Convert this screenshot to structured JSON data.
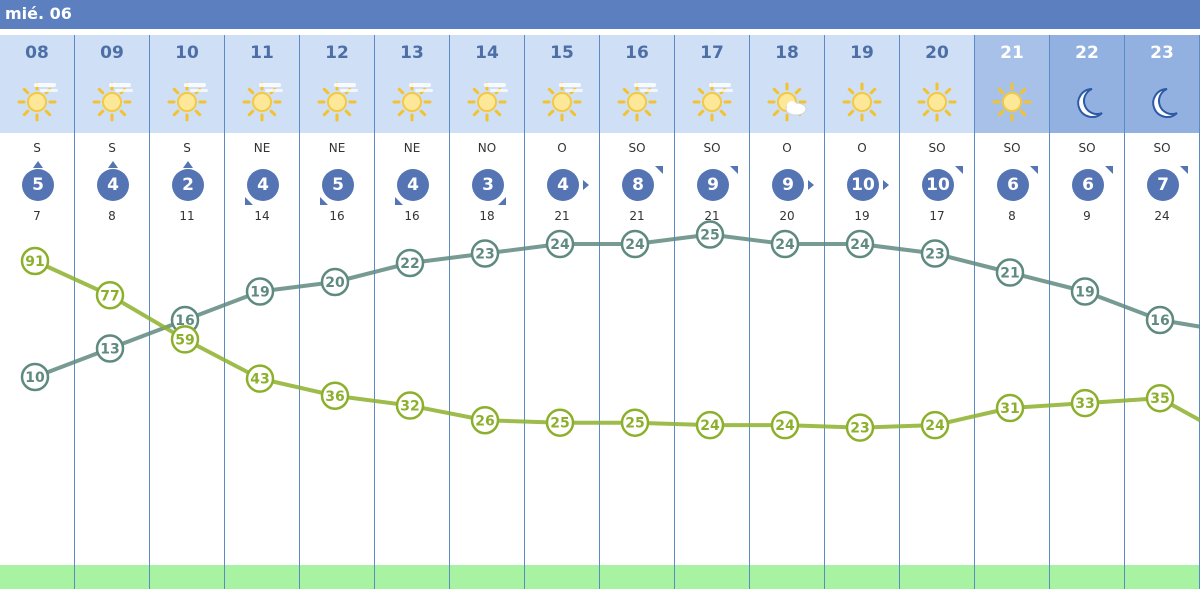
{
  "day_label": "mié. 06",
  "colors": {
    "header": "#5b7fbf",
    "sky": "#cfe0f6",
    "wind_circle": "#5474b4",
    "temp_line": "#5f8a80",
    "humidity_line": "#8db02c",
    "ground": "#a8f3a2"
  },
  "hours": [
    {
      "hour": "08",
      "icon": "sun-haze-icon",
      "wind_dir": "S",
      "wind_speed": "5",
      "gust": "7",
      "arrow": "up"
    },
    {
      "hour": "09",
      "icon": "sun-haze-icon",
      "wind_dir": "S",
      "wind_speed": "4",
      "gust": "8",
      "arrow": "up"
    },
    {
      "hour": "10",
      "icon": "sun-haze-icon",
      "wind_dir": "S",
      "wind_speed": "2",
      "gust": "11",
      "arrow": "up"
    },
    {
      "hour": "11",
      "icon": "sun-haze-icon",
      "wind_dir": "NE",
      "wind_speed": "4",
      "gust": "14",
      "arrow": "down-left"
    },
    {
      "hour": "12",
      "icon": "sun-haze-icon",
      "wind_dir": "NE",
      "wind_speed": "5",
      "gust": "16",
      "arrow": "down-left"
    },
    {
      "hour": "13",
      "icon": "sun-haze-icon",
      "wind_dir": "NE",
      "wind_speed": "4",
      "gust": "16",
      "arrow": "down-left"
    },
    {
      "hour": "14",
      "icon": "sun-haze-icon",
      "wind_dir": "NO",
      "wind_speed": "3",
      "gust": "18",
      "arrow": "down-right"
    },
    {
      "hour": "15",
      "icon": "sun-haze-icon",
      "wind_dir": "O",
      "wind_speed": "4",
      "gust": "21",
      "arrow": "right"
    },
    {
      "hour": "16",
      "icon": "sun-haze-icon",
      "wind_dir": "SO",
      "wind_speed": "8",
      "gust": "21",
      "arrow": "up-right"
    },
    {
      "hour": "17",
      "icon": "sun-haze-icon",
      "wind_dir": "SO",
      "wind_speed": "9",
      "gust": "21",
      "arrow": "up-right"
    },
    {
      "hour": "18",
      "icon": "sun-cloud-icon",
      "wind_dir": "O",
      "wind_speed": "9",
      "gust": "20",
      "arrow": "right"
    },
    {
      "hour": "19",
      "icon": "sun-icon",
      "wind_dir": "O",
      "wind_speed": "10",
      "gust": "19",
      "arrow": "right"
    },
    {
      "hour": "20",
      "icon": "sun-icon",
      "wind_dir": "SO",
      "wind_speed": "10",
      "gust": "17",
      "arrow": "up-right"
    },
    {
      "hour": "21",
      "icon": "sun-icon",
      "wind_dir": "SO",
      "wind_speed": "6",
      "gust": "8",
      "arrow": "up-right",
      "shade": "night"
    },
    {
      "hour": "22",
      "icon": "moon-icon",
      "wind_dir": "SO",
      "wind_speed": "6",
      "gust": "9",
      "arrow": "up-right",
      "shade": "night2"
    },
    {
      "hour": "23",
      "icon": "moon-icon",
      "wind_dir": "SO",
      "wind_speed": "7",
      "gust": "24",
      "arrow": "up-right",
      "shade": "night2"
    }
  ],
  "chart_data": {
    "type": "line",
    "x": [
      "08",
      "09",
      "10",
      "11",
      "12",
      "13",
      "14",
      "15",
      "16",
      "17",
      "18",
      "19",
      "20",
      "21",
      "22",
      "23"
    ],
    "series": [
      {
        "key": "temperature",
        "color": "#5f8a80",
        "values": [
          10,
          13,
          16,
          19,
          20,
          22,
          23,
          24,
          24,
          25,
          24,
          24,
          23,
          21,
          19,
          16
        ]
      },
      {
        "key": "humidity",
        "color": "#8db02c",
        "values": [
          91,
          77,
          59,
          43,
          36,
          32,
          26,
          25,
          25,
          24,
          24,
          23,
          24,
          31,
          33,
          35
        ]
      }
    ]
  }
}
